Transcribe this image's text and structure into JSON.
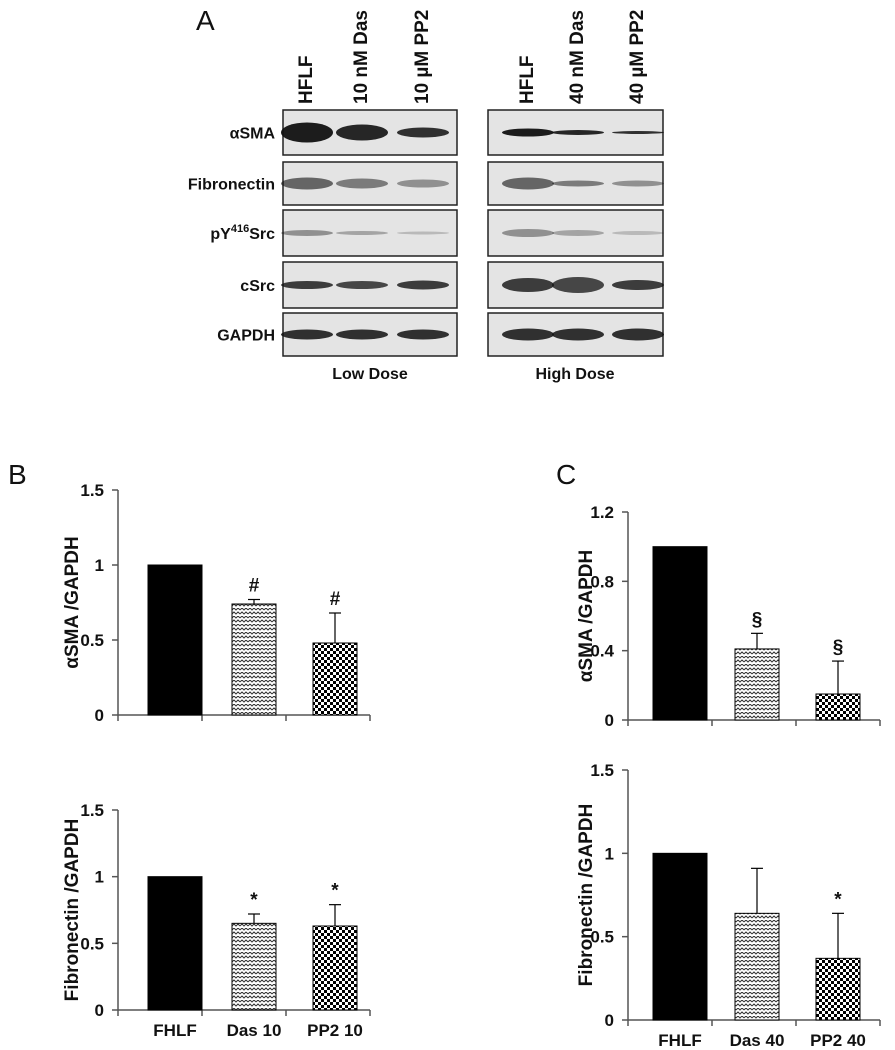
{
  "blot": {
    "panel": "A",
    "low_lanes": [
      "HFLF",
      "10 nM Das",
      "10 µM PP2"
    ],
    "high_lanes": [
      "HFLF",
      "40 nM Das",
      "40 µM PP2"
    ],
    "rows": [
      {
        "text": "αSMA"
      },
      {
        "text": "Fibronectin"
      },
      {
        "text": "pY",
        "sup": "416",
        "tail": "Src"
      },
      {
        "text": "cSrc"
      },
      {
        "text": "GAPDH"
      }
    ],
    "low_label": "Low Dose",
    "high_label": "High Dose"
  },
  "chart_data": [
    {
      "type": "bar",
      "panel": "B",
      "ylabel": "αSMA /GAPDH",
      "categories": [
        null,
        null,
        null
      ],
      "values": [
        1,
        0.74,
        0.48
      ],
      "errors": [
        0,
        0.03,
        0.2
      ],
      "annotations": [
        null,
        "#",
        "#"
      ],
      "fills": [
        "solid",
        "zigzag",
        "checker"
      ],
      "ylim": [
        0,
        1.5
      ],
      "yticks": [
        0,
        0.5,
        1,
        1.5
      ]
    },
    {
      "type": "bar",
      "ylabel": "Fibronectin /GAPDH",
      "categories": [
        "FHLF",
        "Das 10",
        "PP2 10"
      ],
      "values": [
        1,
        0.65,
        0.63
      ],
      "errors": [
        0,
        0.07,
        0.16
      ],
      "annotations": [
        null,
        "*",
        "*"
      ],
      "fills": [
        "solid",
        "zigzag",
        "checker"
      ],
      "ylim": [
        0,
        1.5
      ],
      "yticks": [
        0,
        0.5,
        1,
        1.5
      ]
    },
    {
      "type": "bar",
      "panel": "C",
      "ylabel": "αSMA /GAPDH",
      "categories": [
        null,
        null,
        null
      ],
      "values": [
        1,
        0.41,
        0.15
      ],
      "errors": [
        0,
        0.09,
        0.19
      ],
      "annotations": [
        null,
        "§",
        "§"
      ],
      "fills": [
        "solid",
        "zigzag",
        "checker"
      ],
      "ylim": [
        0,
        1.2
      ],
      "yticks": [
        0,
        0.4,
        0.8,
        1.2
      ]
    },
    {
      "type": "bar",
      "ylabel": "Fibronectin /GAPDH",
      "categories": [
        "FHLF",
        "Das 40",
        "PP2 40"
      ],
      "values": [
        1,
        0.64,
        0.37
      ],
      "errors": [
        0,
        0.27,
        0.27
      ],
      "annotations": [
        null,
        null,
        "*"
      ],
      "fills": [
        "solid",
        "zigzag",
        "checker"
      ],
      "ylim": [
        0,
        1.5
      ],
      "yticks": [
        0,
        0.5,
        1,
        1.5
      ]
    }
  ]
}
